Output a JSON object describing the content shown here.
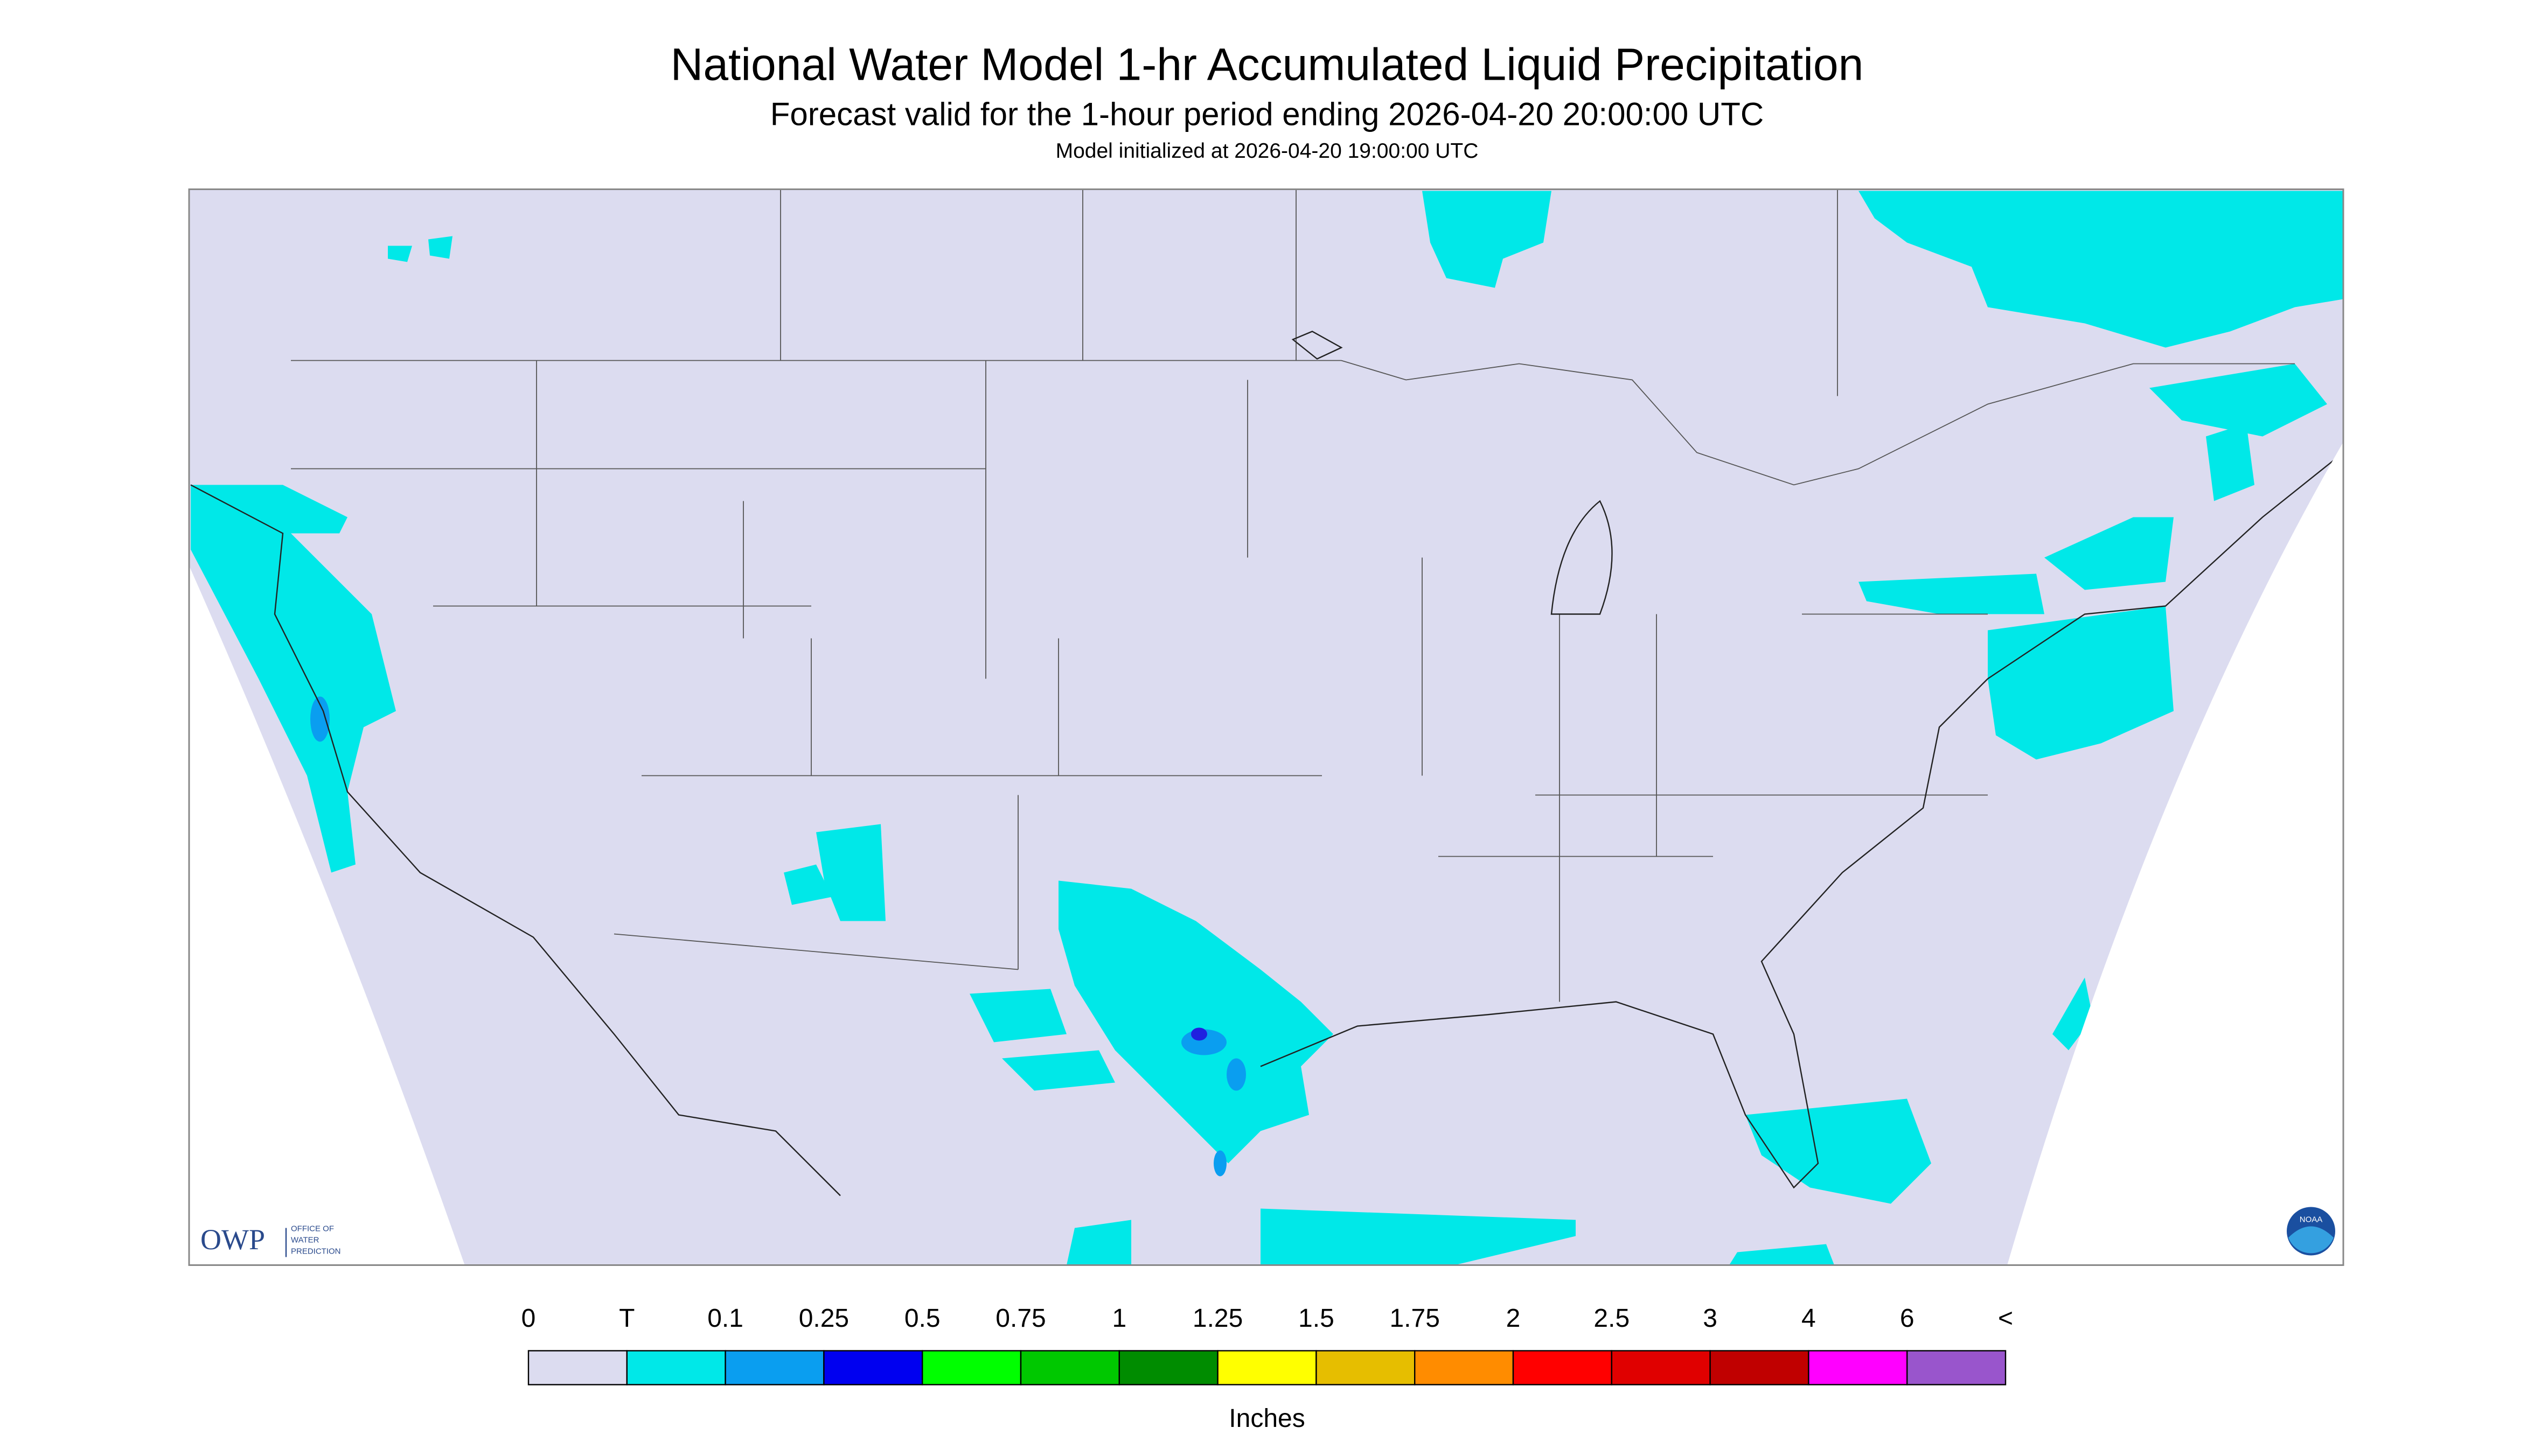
{
  "header": {
    "title": "National Water Model 1-hr Accumulated Liquid Precipitation",
    "subtitle": "Forecast valid for the 1-hour period ending 2026-04-20 20:00:00 UTC",
    "note": "Model initialized at 2026-04-20 19:00:00 UTC"
  },
  "logo": {
    "owp": "OWP",
    "office": [
      "OFFICE OF",
      "WATER",
      "PREDICTION"
    ],
    "noaa": "NOAA"
  },
  "legend": {
    "labels": [
      "0",
      "T",
      "0.1",
      "0.25",
      "0.5",
      "0.75",
      "1",
      "1.25",
      "1.5",
      "1.75",
      "2",
      "2.5",
      "3",
      "4",
      "6",
      "<"
    ],
    "colors": [
      "#dcdcf0",
      "#00e8e8",
      "#0a9ef0",
      "#0000f0",
      "#00ff00",
      "#00c800",
      "#008c00",
      "#ffff00",
      "#e6be00",
      "#ff8c00",
      "#ff0000",
      "#e00000",
      "#c00000",
      "#ff00ff",
      "#9955cc"
    ],
    "units": "Inches"
  }
}
